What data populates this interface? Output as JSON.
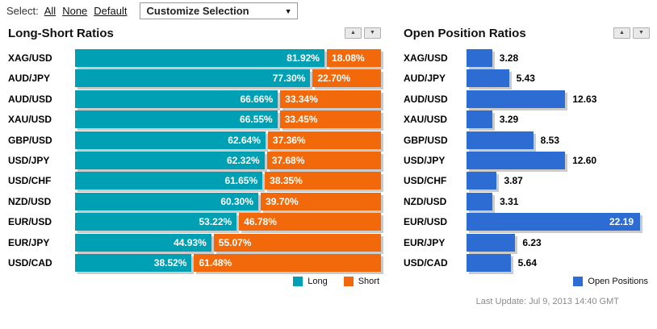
{
  "toolbar": {
    "select_label": "Select:",
    "links": [
      "All",
      "None",
      "Default"
    ],
    "dropdown_value": "Customize Selection"
  },
  "colors": {
    "long": "#00A0B4",
    "short": "#F2690B",
    "open_positions": "#2D6CD3",
    "bar_shadow": "#CBCBCB"
  },
  "long_short": {
    "title": "Long-Short Ratios",
    "legend": [
      {
        "label": "Long",
        "color": "#00A0B4"
      },
      {
        "label": "Short",
        "color": "#F2690B"
      }
    ],
    "rows": [
      {
        "pair": "XAG/USD",
        "long": 81.92,
        "short": 18.08,
        "long_label": "81.92%",
        "short_label": "18.08%"
      },
      {
        "pair": "AUD/JPY",
        "long": 77.3,
        "short": 22.7,
        "long_label": "77.30%",
        "short_label": "22.70%"
      },
      {
        "pair": "AUD/USD",
        "long": 66.66,
        "short": 33.34,
        "long_label": "66.66%",
        "short_label": "33.34%"
      },
      {
        "pair": "XAU/USD",
        "long": 66.55,
        "short": 33.45,
        "long_label": "66.55%",
        "short_label": "33.45%"
      },
      {
        "pair": "GBP/USD",
        "long": 62.64,
        "short": 37.36,
        "long_label": "62.64%",
        "short_label": "37.36%"
      },
      {
        "pair": "USD/JPY",
        "long": 62.32,
        "short": 37.68,
        "long_label": "62.32%",
        "short_label": "37.68%"
      },
      {
        "pair": "USD/CHF",
        "long": 61.65,
        "short": 38.35,
        "long_label": "61.65%",
        "short_label": "38.35%"
      },
      {
        "pair": "NZD/USD",
        "long": 60.3,
        "short": 39.7,
        "long_label": "60.30%",
        "short_label": "39.70%"
      },
      {
        "pair": "EUR/USD",
        "long": 53.22,
        "short": 46.78,
        "long_label": "53.22%",
        "short_label": "46.78%"
      },
      {
        "pair": "EUR/JPY",
        "long": 44.93,
        "short": 55.07,
        "long_label": "44.93%",
        "short_label": "55.07%"
      },
      {
        "pair": "USD/CAD",
        "long": 38.52,
        "short": 61.48,
        "long_label": "38.52%",
        "short_label": "61.48%"
      }
    ]
  },
  "open_positions": {
    "title": "Open Position Ratios",
    "axis_max": 22.19,
    "legend": [
      {
        "label": "Open Positions",
        "color": "#2D6CD3"
      }
    ],
    "rows": [
      {
        "pair": "XAG/USD",
        "value": 3.28,
        "label": "3.28"
      },
      {
        "pair": "AUD/JPY",
        "value": 5.43,
        "label": "5.43"
      },
      {
        "pair": "AUD/USD",
        "value": 12.63,
        "label": "12.63"
      },
      {
        "pair": "XAU/USD",
        "value": 3.29,
        "label": "3.29"
      },
      {
        "pair": "GBP/USD",
        "value": 8.53,
        "label": "8.53"
      },
      {
        "pair": "USD/JPY",
        "value": 12.6,
        "label": "12.60"
      },
      {
        "pair": "USD/CHF",
        "value": 3.87,
        "label": "3.87"
      },
      {
        "pair": "NZD/USD",
        "value": 3.31,
        "label": "3.31"
      },
      {
        "pair": "EUR/USD",
        "value": 22.19,
        "label": "22.19"
      },
      {
        "pair": "EUR/JPY",
        "value": 6.23,
        "label": "6.23"
      },
      {
        "pair": "USD/CAD",
        "value": 5.64,
        "label": "5.64"
      }
    ]
  },
  "footer": {
    "last_update": "Last Update: Jul 9, 2013 14:40 GMT"
  },
  "chart_data": [
    {
      "type": "bar",
      "orientation": "horizontal",
      "stacked": true,
      "title": "Long-Short Ratios",
      "categories": [
        "XAG/USD",
        "AUD/JPY",
        "AUD/USD",
        "XAU/USD",
        "GBP/USD",
        "USD/JPY",
        "USD/CHF",
        "NZD/USD",
        "EUR/USD",
        "EUR/JPY",
        "USD/CAD"
      ],
      "series": [
        {
          "name": "Long",
          "values": [
            81.92,
            77.3,
            66.66,
            66.55,
            62.64,
            62.32,
            61.65,
            60.3,
            53.22,
            44.93,
            38.52
          ]
        },
        {
          "name": "Short",
          "values": [
            18.08,
            22.7,
            33.34,
            33.45,
            37.36,
            37.68,
            38.35,
            39.7,
            46.78,
            55.07,
            61.48
          ]
        }
      ],
      "unit": "%",
      "xlim": [
        0,
        100
      ],
      "grid": false,
      "legend_position": "bottom-right",
      "data_labels": true
    },
    {
      "type": "bar",
      "orientation": "horizontal",
      "stacked": false,
      "title": "Open Position Ratios",
      "categories": [
        "XAG/USD",
        "AUD/JPY",
        "AUD/USD",
        "XAU/USD",
        "GBP/USD",
        "USD/JPY",
        "USD/CHF",
        "NZD/USD",
        "EUR/USD",
        "EUR/JPY",
        "USD/CAD"
      ],
      "series": [
        {
          "name": "Open Positions",
          "values": [
            3.28,
            5.43,
            12.63,
            3.29,
            8.53,
            12.6,
            3.87,
            3.31,
            22.19,
            6.23,
            5.64
          ]
        }
      ],
      "xlim": [
        0,
        22.19
      ],
      "grid": false,
      "legend_position": "bottom-right",
      "data_labels": true,
      "annotation": "Last Update: Jul 9, 2013 14:40 GMT"
    }
  ]
}
